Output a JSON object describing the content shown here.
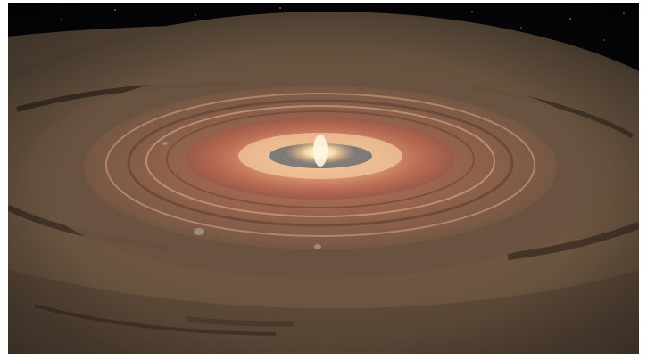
{
  "image": {
    "subject": "protoplanetary-disk",
    "colors": {
      "space": "#08080a",
      "outer_disk": "#6e5a46",
      "mid_disk": "#8a5e48",
      "inner_ring": "#b8705a",
      "hot_core": "#f6e6c0",
      "gap": "#2a1f18"
    }
  }
}
